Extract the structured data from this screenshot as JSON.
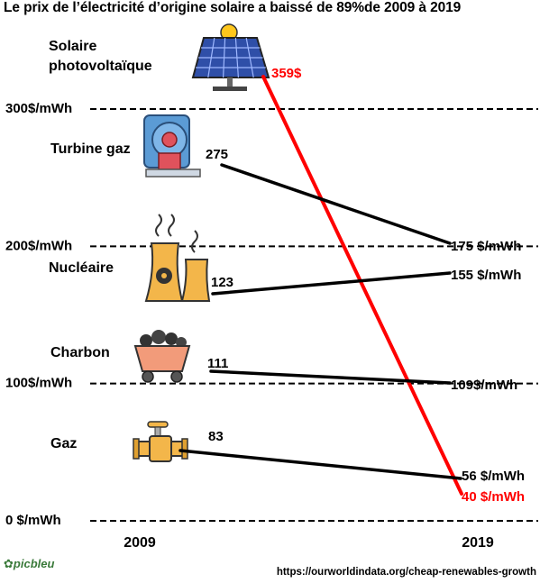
{
  "title": "Le prix de l’électricité d’origine solaire a baissé de 89%de 2009 à 2019",
  "source": "https://ourworldindata.org/cheap-renewables-growth",
  "logo_text": "picbleu",
  "colors": {
    "solar": "#ff0000",
    "other": "#000000",
    "gridline": "#000000"
  },
  "chart_data": {
    "type": "line",
    "title": "Le prix de l’électricité d’origine solaire a baissé de 89%de 2009 à 2019",
    "x": [
      "2009",
      "2019"
    ],
    "ylim": [
      0,
      360
    ],
    "ylabel": "",
    "grid": true,
    "y_ticks": [
      {
        "value": 0,
        "label": "0 $/mWh"
      },
      {
        "value": 100,
        "label": "100$/mWh"
      },
      {
        "value": 200,
        "label": "200$/mWh"
      },
      {
        "value": 300,
        "label": "300$/mWh"
      }
    ],
    "series": [
      {
        "name": "Solaire photovoltaïque",
        "key": "solar",
        "icon": "solar-panel-icon",
        "values": [
          359,
          40
        ],
        "start_label": "359$",
        "end_label": "40 $/mWh",
        "color": "#ff0000"
      },
      {
        "name": "Turbine gaz",
        "key": "gas-turbine",
        "icon": "turbine-icon",
        "values": [
          275,
          175
        ],
        "start_label": "275",
        "end_label": "175 $/mWh",
        "color": "#000000"
      },
      {
        "name": "Nucléaire",
        "key": "nuclear",
        "icon": "nuclear-plant-icon",
        "values": [
          123,
          155
        ],
        "start_label": "123",
        "end_label": "155 $/mWh",
        "color": "#000000"
      },
      {
        "name": "Charbon",
        "key": "coal",
        "icon": "coal-cart-icon",
        "values": [
          111,
          109
        ],
        "start_label": "111",
        "end_label": "109$/mWh",
        "color": "#000000"
      },
      {
        "name": "Gaz",
        "key": "gas",
        "icon": "gas-pipe-icon",
        "values": [
          83,
          56
        ],
        "start_label": "83",
        "end_label": "56 $/mWh",
        "color": "#000000"
      }
    ]
  }
}
